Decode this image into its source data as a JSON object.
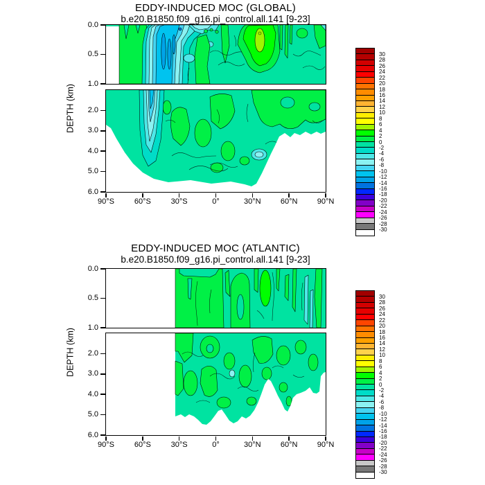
{
  "page": {
    "background": "#FFFFFF"
  },
  "chart_data": [
    {
      "type": "heatmap",
      "plot_style": "filled-contour latitude-depth ocean section, two stacked depth panels",
      "title": "EDDY-INDUCED MOC (GLOBAL)",
      "subtitle": "b.e20.B1850.f09_g16.pi_control.all.141 [9-23]",
      "xlabel": "",
      "ylabel": "DEPTH (km)",
      "x_tick_labels": [
        "90°S",
        "60°S",
        "30°S",
        "0°",
        "30°N",
        "60°N",
        "90°N"
      ],
      "x_range_deg_latitude": [
        -90,
        90
      ],
      "upper_panel": {
        "depth_range_km": [
          0.0,
          1.0
        ],
        "tick_labels": [
          "0.0",
          "0.5",
          "1.0"
        ]
      },
      "lower_panel": {
        "depth_range_km": [
          1.0,
          6.0
        ],
        "tick_labels": [
          "2.0",
          "3.0",
          "4.0",
          "5.0",
          "6.0"
        ]
      },
      "contour_interval": 2,
      "contour_levels": [
        -30,
        -28,
        -26,
        -24,
        -22,
        -20,
        -18,
        -16,
        -14,
        -12,
        -10,
        -8,
        -6,
        -4,
        -2,
        0,
        2,
        4,
        6,
        8,
        10,
        12,
        14,
        16,
        18,
        20,
        22,
        24,
        26,
        28,
        30
      ],
      "value_range_visible": [
        -16,
        6
      ],
      "features": [
        "strong negative (cyan-blue) eddy-induced cell centered near 60S, reaching about -12 to -14 in the upper 1 km and extending to ~3.5 km depth",
        "weak positive (green) band near 25N-45N with a 4-6 maximum around 35N in the upper 0.5 km",
        "background values mostly between -2 and +2 (turquoise and green)",
        "white bathymetry mask: below ~4.5 km south of 60S, bottom strip below ~5.5 km, and north of ~45N below ~3 km",
        "white Antarctic continent block at far left of upper panel (90S to ~79S)"
      ]
    },
    {
      "type": "heatmap",
      "plot_style": "filled-contour latitude-depth ocean section, two stacked depth panels",
      "title": "EDDY-INDUCED MOC (ATLANTIC)",
      "subtitle": "b.e20.B1850.f09_g16.pi_control.all.141 [9-23]",
      "xlabel": "",
      "ylabel": "DEPTH (km)",
      "x_tick_labels": [
        "90°S",
        "60°S",
        "30°S",
        "0°",
        "30°N",
        "60°N",
        "90°N"
      ],
      "x_range_deg_latitude": [
        -90,
        90
      ],
      "upper_panel": {
        "depth_range_km": [
          0.0,
          1.0
        ],
        "tick_labels": [
          "0.0",
          "0.5",
          "1.0"
        ]
      },
      "lower_panel": {
        "depth_range_km": [
          1.0,
          6.0
        ],
        "tick_labels": [
          "2.0",
          "3.0",
          "4.0",
          "5.0",
          "6.0"
        ]
      },
      "contour_interval": 2,
      "contour_levels": [
        -30,
        -28,
        -26,
        -24,
        -22,
        -20,
        -18,
        -16,
        -14,
        -12,
        -10,
        -8,
        -6,
        -4,
        -2,
        0,
        2,
        4,
        6,
        8,
        10,
        12,
        14,
        16,
        18,
        20,
        22,
        24,
        26,
        28,
        30
      ],
      "value_range_visible": [
        -6,
        4
      ],
      "features": [
        "no data (white) south of ~33S where the Atlantic basin is masked",
        "alternating weak positive/negative vertical bands (-2 to +2) through the basin",
        "local positive maximum of 2-4 (bright green) near 35N in the upper 0.5 km",
        "white bathymetry mask below ~5 km with ridge topography near the equator and shallow topography peak near 60N"
      ]
    }
  ],
  "colorbar": {
    "orientation": "vertical",
    "position": "right",
    "tick_labels": [
      "30",
      "28",
      "26",
      "24",
      "22",
      "20",
      "18",
      "16",
      "14",
      "12",
      "10",
      "8",
      "6",
      "4",
      "2",
      "0",
      "-2",
      "-4",
      "-6",
      "-8",
      "-10",
      "-12",
      "-14",
      "-16",
      "-18",
      "-20",
      "-22",
      "-24",
      "-26",
      "-28",
      "-30"
    ],
    "colors": [
      "#A20000",
      "#B40000",
      "#D20000",
      "#E60000",
      "#FF0000",
      "#FF4500",
      "#FF7300",
      "#FF8C00",
      "#FFA000",
      "#FFB432",
      "#FFD24B",
      "#FFEE00",
      "#FFFF00",
      "#A0F500",
      "#00FF00",
      "#00F046",
      "#00E3A1",
      "#00DCC8",
      "#4FE8E8",
      "#8BF2F2",
      "#45D5F2",
      "#00C3EF",
      "#00A3E8",
      "#0073E0",
      "#0028FF",
      "#3C00DC",
      "#8200C8",
      "#C800C8",
      "#FF00FF",
      "#C8C8C8",
      "#787878",
      "#FFFFFF"
    ]
  }
}
